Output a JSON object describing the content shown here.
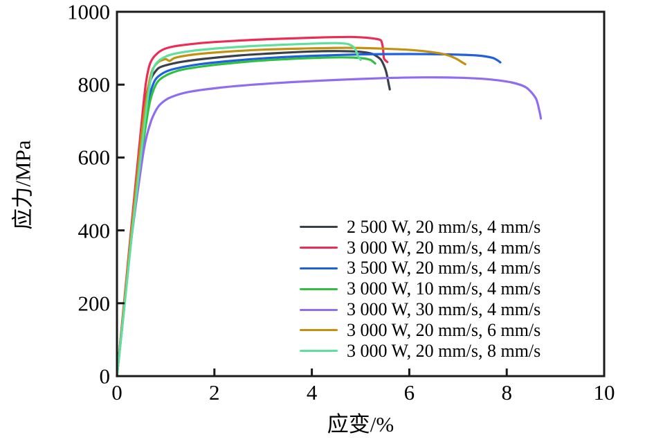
{
  "chart_data": {
    "type": "line",
    "title": "",
    "xlabel": "应变/%",
    "ylabel": "应力/MPa",
    "xlim": [
      0,
      10
    ],
    "ylim": [
      0,
      1000
    ],
    "grid": false,
    "legend_position": "inside lower right",
    "axis_color": "#1a1a1a",
    "background_color": "#ffffff",
    "x_ticks": [
      {
        "value": 0,
        "label": "0"
      },
      {
        "value": 2,
        "label": "2"
      },
      {
        "value": 4,
        "label": "4"
      },
      {
        "value": 6,
        "label": "6"
      },
      {
        "value": 8,
        "label": "8"
      },
      {
        "value": 10,
        "label": "10"
      }
    ],
    "y_ticks": [
      {
        "value": 0,
        "label": "0"
      },
      {
        "value": 200,
        "label": "200"
      },
      {
        "value": 400,
        "label": "400"
      },
      {
        "value": 600,
        "label": "600"
      },
      {
        "value": 800,
        "label": "800"
      },
      {
        "value": 1000,
        "label": "1000"
      }
    ],
    "series": [
      {
        "name": "2 500 W, 20 mm/s, 4 mm/s",
        "color": "#3a4048",
        "points": [
          [
            0,
            0
          ],
          [
            0.12,
            160
          ],
          [
            0.3,
            400
          ],
          [
            0.5,
            660
          ],
          [
            0.62,
            780
          ],
          [
            0.72,
            822
          ],
          [
            0.85,
            845
          ],
          [
            1.0,
            853
          ],
          [
            1.3,
            862
          ],
          [
            1.8,
            871
          ],
          [
            2.5,
            880
          ],
          [
            3.2,
            886
          ],
          [
            4.0,
            891
          ],
          [
            4.6,
            892
          ],
          [
            5.0,
            890
          ],
          [
            5.25,
            884
          ],
          [
            5.42,
            868
          ],
          [
            5.52,
            838
          ],
          [
            5.58,
            800
          ],
          [
            5.6,
            787
          ]
        ]
      },
      {
        "name": "3 000 W, 20 mm/s, 4 mm/s",
        "color": "#ee2b55",
        "points": [
          [
            0,
            0
          ],
          [
            0.12,
            165
          ],
          [
            0.3,
            415
          ],
          [
            0.48,
            660
          ],
          [
            0.58,
            790
          ],
          [
            0.66,
            850
          ],
          [
            0.75,
            875
          ],
          [
            0.9,
            893
          ],
          [
            1.1,
            903
          ],
          [
            1.5,
            911
          ],
          [
            2.0,
            917
          ],
          [
            2.8,
            923
          ],
          [
            3.6,
            927
          ],
          [
            4.3,
            930
          ],
          [
            4.8,
            931
          ],
          [
            5.1,
            929
          ],
          [
            5.3,
            926
          ],
          [
            5.42,
            921
          ],
          [
            5.46,
            900
          ],
          [
            5.48,
            872
          ],
          [
            5.55,
            862
          ]
        ]
      },
      {
        "name": "3 500 W, 20 mm/s, 4 mm/s",
        "color": "#2060e0",
        "points": [
          [
            0,
            0
          ],
          [
            0.12,
            155
          ],
          [
            0.3,
            390
          ],
          [
            0.52,
            650
          ],
          [
            0.65,
            760
          ],
          [
            0.78,
            812
          ],
          [
            0.95,
            832
          ],
          [
            1.2,
            844
          ],
          [
            1.7,
            856
          ],
          [
            2.4,
            866
          ],
          [
            3.2,
            874
          ],
          [
            4.0,
            879
          ],
          [
            5.0,
            883
          ],
          [
            6.0,
            884
          ],
          [
            6.8,
            883
          ],
          [
            7.4,
            880
          ],
          [
            7.7,
            874
          ],
          [
            7.82,
            866
          ],
          [
            7.87,
            861
          ]
        ]
      },
      {
        "name": "3 000 W, 10 mm/s, 4 mm/s",
        "color": "#2fc13d",
        "points": [
          [
            0,
            0
          ],
          [
            0.12,
            150
          ],
          [
            0.3,
            385
          ],
          [
            0.54,
            640
          ],
          [
            0.68,
            755
          ],
          [
            0.82,
            805
          ],
          [
            1.0,
            825
          ],
          [
            1.3,
            840
          ],
          [
            1.8,
            851
          ],
          [
            2.5,
            861
          ],
          [
            3.2,
            868
          ],
          [
            4.0,
            873
          ],
          [
            4.6,
            875
          ],
          [
            5.0,
            873
          ],
          [
            5.2,
            868
          ],
          [
            5.3,
            858
          ]
        ]
      },
      {
        "name": "3 000 W, 30 mm/s, 4 mm/s",
        "color": "#8f6cf0",
        "points": [
          [
            0,
            0
          ],
          [
            0.12,
            150
          ],
          [
            0.3,
            380
          ],
          [
            0.55,
            620
          ],
          [
            0.7,
            700
          ],
          [
            0.85,
            740
          ],
          [
            1.05,
            762
          ],
          [
            1.4,
            778
          ],
          [
            2.0,
            790
          ],
          [
            2.8,
            800
          ],
          [
            3.6,
            807
          ],
          [
            4.5,
            813
          ],
          [
            5.5,
            818
          ],
          [
            6.3,
            820
          ],
          [
            7.0,
            819
          ],
          [
            7.6,
            815
          ],
          [
            8.1,
            806
          ],
          [
            8.4,
            792
          ],
          [
            8.6,
            762
          ],
          [
            8.68,
            722
          ],
          [
            8.7,
            707
          ]
        ]
      },
      {
        "name": "3 000 W, 20 mm/s, 6 mm/s",
        "color": "#c39110",
        "points": [
          [
            0,
            0
          ],
          [
            0.12,
            158
          ],
          [
            0.3,
            400
          ],
          [
            0.5,
            655
          ],
          [
            0.62,
            775
          ],
          [
            0.72,
            838
          ],
          [
            0.85,
            862
          ],
          [
            1.0,
            870
          ],
          [
            1.08,
            865
          ],
          [
            1.2,
            874
          ],
          [
            1.6,
            883
          ],
          [
            2.2,
            890
          ],
          [
            3.0,
            896
          ],
          [
            3.8,
            899
          ],
          [
            4.6,
            901
          ],
          [
            5.2,
            900
          ],
          [
            5.8,
            897
          ],
          [
            6.3,
            892
          ],
          [
            6.7,
            884
          ],
          [
            6.95,
            872
          ],
          [
            7.1,
            860
          ],
          [
            7.15,
            856
          ]
        ]
      },
      {
        "name": "3 000 W, 20 mm/s, 8 mm/s",
        "color": "#5fdf9d",
        "points": [
          [
            0,
            0
          ],
          [
            0.12,
            148
          ],
          [
            0.3,
            380
          ],
          [
            0.52,
            640
          ],
          [
            0.65,
            780
          ],
          [
            0.75,
            845
          ],
          [
            0.88,
            868
          ],
          [
            1.1,
            882
          ],
          [
            1.5,
            892
          ],
          [
            2.1,
            900
          ],
          [
            2.8,
            906
          ],
          [
            3.5,
            910
          ],
          [
            4.1,
            913
          ],
          [
            4.5,
            914
          ],
          [
            4.75,
            911
          ],
          [
            4.88,
            900
          ],
          [
            4.95,
            878
          ],
          [
            5.0,
            868
          ]
        ]
      }
    ]
  }
}
